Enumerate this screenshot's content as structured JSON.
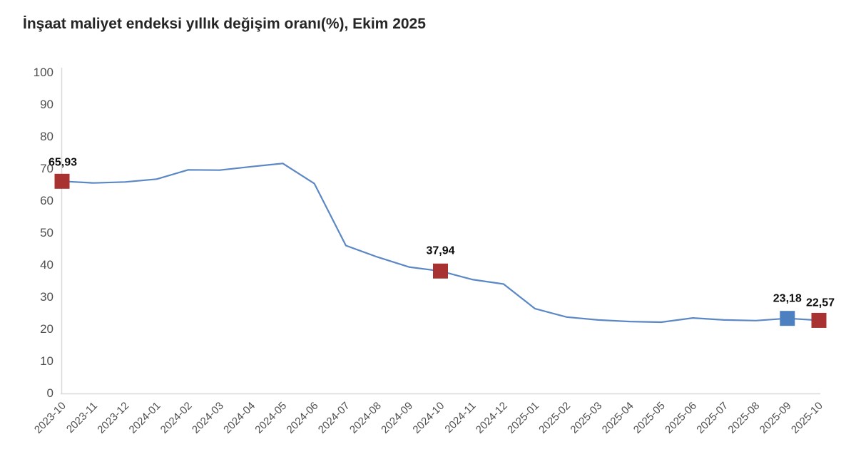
{
  "chart_data": {
    "type": "line",
    "title": "İnşaat maliyet endeksi yıllık değişim oranı(%), Ekim 2025",
    "x": [
      "2023-10",
      "2023-11",
      "2023-12",
      "2024-01",
      "2024-02",
      "2024-03",
      "2024-04",
      "2024-05",
      "2024-06",
      "2024-07",
      "2024-08",
      "2024-09",
      "2024-10",
      "2024-11",
      "2024-12",
      "2025-01",
      "2025-02",
      "2025-03",
      "2025-04",
      "2025-05",
      "2025-06",
      "2025-07",
      "2025-08",
      "2025-09",
      "2025-10"
    ],
    "values": [
      65.93,
      65.4,
      65.7,
      66.6,
      69.5,
      69.4,
      70.5,
      71.5,
      65.2,
      45.9,
      42.3,
      39.2,
      37.94,
      35.3,
      33.9,
      26.2,
      23.6,
      22.7,
      22.2,
      22.0,
      23.3,
      22.7,
      22.5,
      23.18,
      22.57
    ],
    "ylim": [
      0,
      100
    ],
    "yticks": [
      0,
      10,
      20,
      30,
      40,
      50,
      60,
      70,
      80,
      90,
      100
    ],
    "grid": false,
    "legend": "none",
    "line_color": "#5b87c5",
    "axis_color": "#d9d9d9",
    "tick_label_color": "#4f4f4f",
    "annotation_label_color": "#0d0d0d",
    "annotations": [
      {
        "x": "2023-10",
        "index": 0,
        "value": 65.93,
        "label": "65,93",
        "marker": "square",
        "marker_color": "#a83232"
      },
      {
        "x": "2024-10",
        "index": 12,
        "value": 37.94,
        "label": "37,94",
        "marker": "square",
        "marker_color": "#a83232"
      },
      {
        "x": "2025-09",
        "index": 23,
        "value": 23.18,
        "label": "23,18",
        "marker": "square",
        "marker_color": "#4d80c0"
      },
      {
        "x": "2025-10",
        "index": 24,
        "value": 22.57,
        "label": "22,57",
        "marker": "square",
        "marker_color": "#a83232"
      }
    ]
  }
}
